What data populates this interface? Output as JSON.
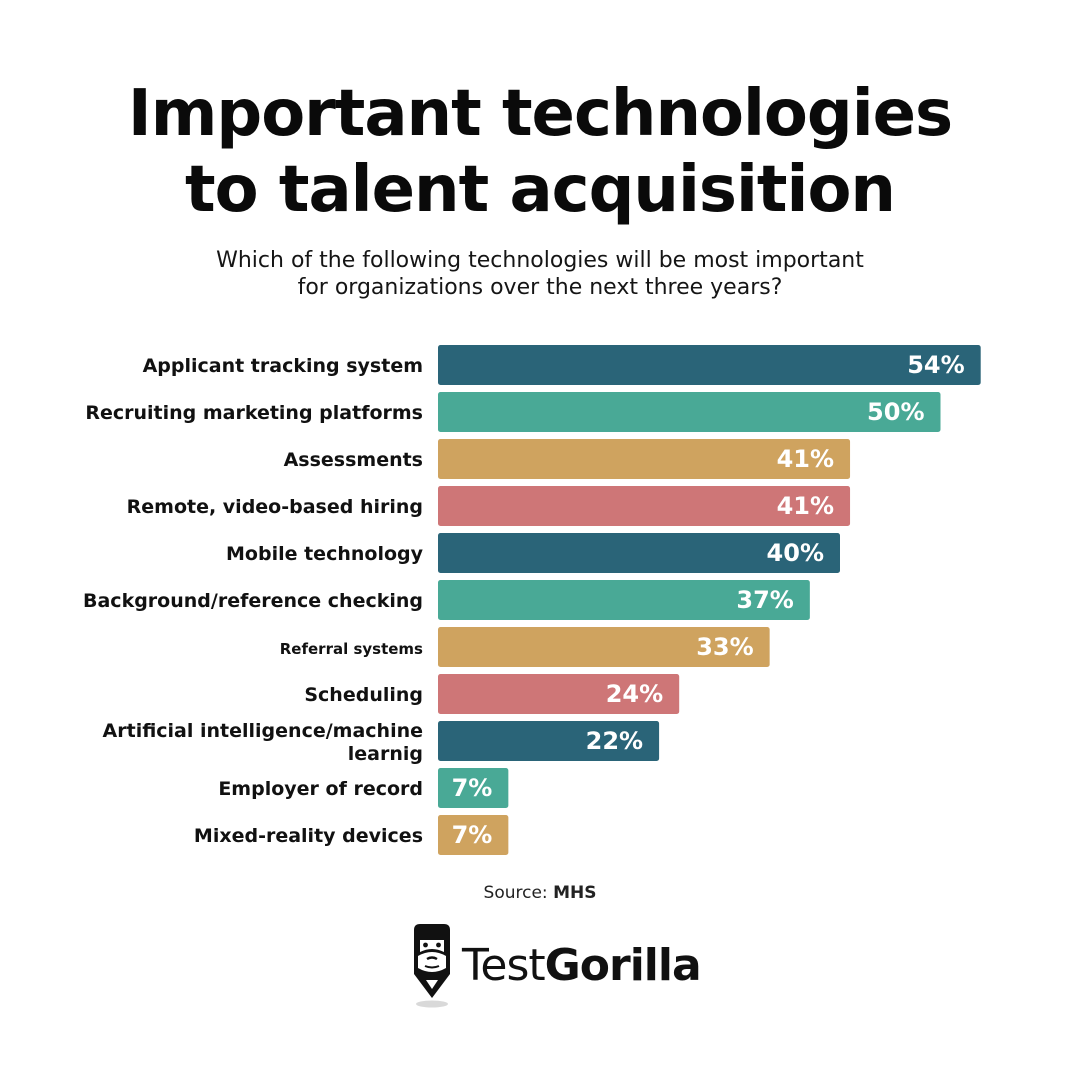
{
  "title": {
    "line1": "Important technologies",
    "line2": "to talent acquisition"
  },
  "subtitle": {
    "line1": "Which of the following technologies will be most important",
    "line2": "for organizations over the next three years?"
  },
  "source": {
    "prefix": "Source:",
    "name": "MHS"
  },
  "brand": {
    "name_part1": "Test",
    "name_part2": "Gorilla",
    "logo_icon": "gorilla-logo-icon"
  },
  "colors": {
    "navy": "#2a6478",
    "teal": "#49a996",
    "gold": "#cfa35f",
    "rose": "#ce7677"
  },
  "chart_data": {
    "type": "bar",
    "orientation": "horizontal",
    "categories": [
      "Applicant tracking system",
      "Recruiting marketing platforms",
      "Assessments",
      "Remote, video-based hiring",
      "Mobile technology",
      "Background/reference checking",
      "Referral systems",
      "Scheduling",
      "Artificial intelligence/machine learnig",
      "Employer of record",
      "Mixed-reality devices"
    ],
    "values": [
      54,
      50,
      41,
      41,
      40,
      37,
      33,
      24,
      22,
      7,
      7
    ],
    "value_labels": [
      "54%",
      "50%",
      "41%",
      "41%",
      "40%",
      "37%",
      "33%",
      "24%",
      "22%",
      "7%",
      "7%"
    ],
    "bar_colors": [
      "#2a6478",
      "#49a996",
      "#cfa35f",
      "#ce7677",
      "#2a6478",
      "#49a996",
      "#cfa35f",
      "#ce7677",
      "#2a6478",
      "#49a996",
      "#cfa35f"
    ],
    "unit": "%",
    "grid": false,
    "legend": "none"
  }
}
